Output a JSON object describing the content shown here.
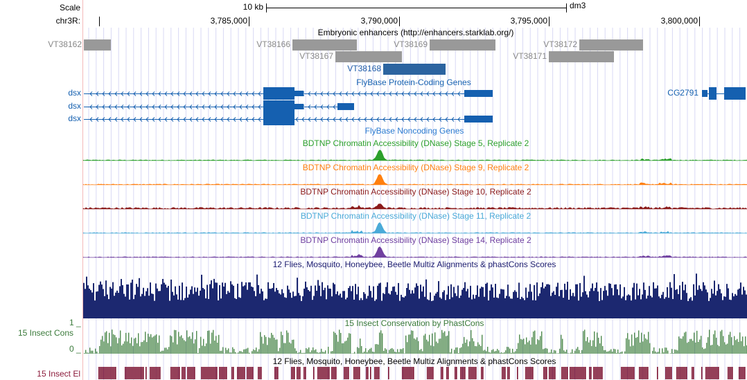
{
  "ruler": {
    "scale_label": "Scale",
    "scale_size": "10 kb",
    "assembly": "dm3",
    "chrom_label": "chr3R:",
    "positions": [
      "3,785,000",
      "3,790,000",
      "3,795,000",
      "3,800,000"
    ]
  },
  "enhancers": {
    "title": "Embryonic enhancers (http://enhancers.starklab.org/)",
    "items": [
      "VT38162",
      "VT38166",
      "VT38169",
      "VT38172",
      "VT38167",
      "VT38171",
      "VT38168"
    ]
  },
  "coding_genes": {
    "title": "FlyBase Protein-Coding Genes",
    "genes": [
      "dsx",
      "dsx",
      "dsx",
      "CG2791"
    ]
  },
  "noncoding_genes": {
    "title": "FlyBase Noncoding Genes"
  },
  "dnase_tracks": [
    "BDTNP Chromatin Accessibility (DNase) Stage 5, Replicate 2",
    "BDTNP Chromatin Accessibility (DNase) Stage 9, Replicate 2",
    "BDTNP Chromatin Accessibility (DNase) Stage 10, Replicate 2",
    "BDTNP Chromatin Accessibility (DNase) Stage 11, Replicate 2",
    "BDTNP Chromatin Accessibility (DNase) Stage 14, Replicate 2"
  ],
  "multiz": {
    "title": "12 Flies, Mosquito, Honeybee, Beetle Multiz Alignments & phastCons Scores"
  },
  "conservation": {
    "left_label": "15 Insect Cons",
    "title": "15 Insect Conservation by PhastCons",
    "axis_top": "1 _",
    "axis_bottom": "0 _"
  },
  "elements": {
    "left_label": "15 Insect El",
    "title": "12 Flies, Mosquito, Honeybee, Beetle Multiz Alignments & phastCons Scores"
  }
}
